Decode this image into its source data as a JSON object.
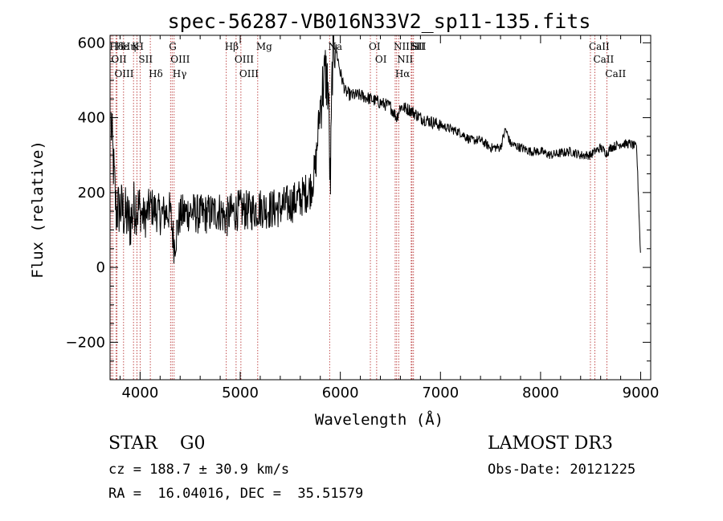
{
  "chart_data": {
    "type": "line",
    "title": "spec-56287-VB016N33V2_sp11-135.fits",
    "xlabel": "Wavelength (Å)",
    "ylabel": "Flux (relative)",
    "xlim": [
      3700,
      9100
    ],
    "ylim": [
      -300,
      620
    ],
    "x_ticks": [
      4000,
      5000,
      6000,
      7000,
      8000,
      9000
    ],
    "x_tick_labels": [
      "4000",
      "5000",
      "6000",
      "7000",
      "8000",
      "9000"
    ],
    "y_ticks": [
      -200,
      0,
      200,
      400,
      600
    ],
    "y_tick_labels": [
      "−200",
      "0",
      "200",
      "400",
      "600"
    ],
    "series": [
      {
        "name": "spectrum",
        "color": "#000000",
        "x": [
          3710,
          3760,
          3800,
          3850,
          3900,
          3950,
          4000,
          4050,
          4100,
          4200,
          4300,
          4340,
          4400,
          4500,
          4600,
          4700,
          4800,
          4860,
          4900,
          5000,
          5100,
          5200,
          5300,
          5400,
          5500,
          5600,
          5700,
          5750,
          5800,
          5850,
          5880,
          5900,
          5920,
          5940,
          5960,
          6000,
          6050,
          6100,
          6200,
          6300,
          6400,
          6500,
          6563,
          6600,
          6700,
          6800,
          6900,
          7000,
          7100,
          7200,
          7300,
          7400,
          7500,
          7600,
          7650,
          7700,
          7800,
          7900,
          8000,
          8100,
          8200,
          8300,
          8400,
          8500,
          8542,
          8600,
          8662,
          8700,
          8800,
          8900,
          8960,
          9000
        ],
        "y": [
          390,
          150,
          160,
          140,
          120,
          170,
          150,
          130,
          165,
          140,
          150,
          60,
          140,
          150,
          140,
          145,
          150,
          130,
          145,
          155,
          150,
          160,
          155,
          160,
          170,
          185,
          210,
          260,
          440,
          520,
          480,
          200,
          540,
          600,
          580,
          520,
          470,
          460,
          460,
          450,
          440,
          430,
          400,
          430,
          420,
          400,
          390,
          380,
          370,
          360,
          340,
          340,
          320,
          320,
          370,
          330,
          320,
          310,
          310,
          300,
          305,
          310,
          300,
          300,
          310,
          320,
          305,
          320,
          330,
          330,
          320,
          20
        ]
      }
    ],
    "emission_lines": [
      {
        "label": "Hδ",
        "x": 3710
      },
      {
        "label": "OII",
        "x": 3727
      },
      {
        "label": "OIII",
        "x": 3760
      },
      {
        "label": "Hε",
        "x": 3770
      },
      {
        "label": "Hη",
        "x": 3835
      },
      {
        "label": "K",
        "x": 3934
      },
      {
        "label": "H",
        "x": 3969
      },
      {
        "label": "SII",
        "x": 4000
      },
      {
        "label": "Hδ",
        "x": 4102
      },
      {
        "label": "OIII",
        "x": 4320
      },
      {
        "label": "Hγ",
        "x": 4340
      },
      {
        "label": "G",
        "x": 4304
      },
      {
        "label": "Hβ",
        "x": 4861
      },
      {
        "label": "OIII",
        "x": 4959
      },
      {
        "label": "OIII",
        "x": 5007
      },
      {
        "label": "Mg",
        "x": 5175
      },
      {
        "label": "Na",
        "x": 5893
      },
      {
        "label": "OI",
        "x": 6300
      },
      {
        "label": "OI",
        "x": 6363
      },
      {
        "label": "NII",
        "x": 6548
      },
      {
        "label": "Hα",
        "x": 6563
      },
      {
        "label": "NII",
        "x": 6583
      },
      {
        "label": "Li",
        "x": 6708
      },
      {
        "label": "SII",
        "x": 6716
      },
      {
        "label": "SII",
        "x": 6731
      },
      {
        "label": "CaII",
        "x": 8498
      },
      {
        "label": "CaII",
        "x": 8542
      },
      {
        "label": "CaII",
        "x": 8662
      }
    ]
  },
  "info": {
    "class": "STAR    G0",
    "survey": "LAMOST DR3",
    "cz": "cz = 188.7 ± 30.9 km/s",
    "obs_date": "Obs-Date: 20121225",
    "coords": "RA =  16.04016, DEC =  35.51579"
  },
  "colors": {
    "line_marker": "#b22222",
    "spectrum": "#000000"
  }
}
